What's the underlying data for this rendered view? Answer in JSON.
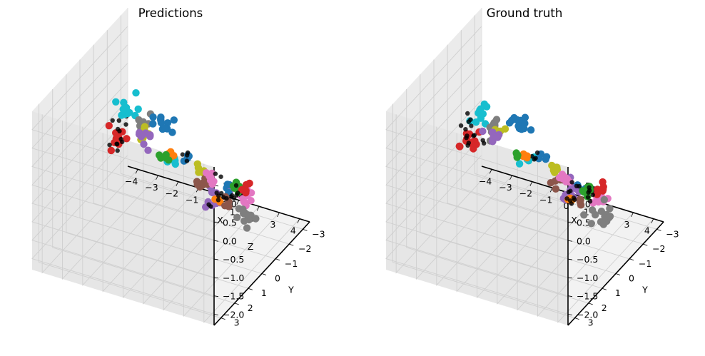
{
  "chart_data": [
    {
      "type": "scatter",
      "projection": "3d",
      "title": "Predictions",
      "xlabel": "X",
      "ylabel": "Y",
      "zlabel": "Z",
      "xlim": [
        -4.5,
        4.5
      ],
      "ylim": [
        -3.5,
        3.5
      ],
      "zlim": [
        -2.3,
        2.0
      ],
      "x_ticks": [
        "−4",
        "−3",
        "−2",
        "−1",
        "0",
        "1",
        "2",
        "3",
        "4"
      ],
      "y_ticks": [
        "−3",
        "−2",
        "−1",
        "0",
        "1",
        "2",
        "3"
      ],
      "z_ticks": [
        "1.5",
        "1.0",
        "0.5",
        "0.0",
        "−0.5",
        "−1.0",
        "−1.5",
        "−2.0"
      ],
      "grid": true,
      "clusters": [
        {
          "color": "#1f77b4",
          "n": 12,
          "x": 0.8,
          "y": 1.6,
          "z": 1.8,
          "sx": 0.5,
          "sy": 0.3,
          "sz": 0.08
        },
        {
          "color": "#1f77b4",
          "n": 4,
          "x": 0.5,
          "y": -0.5,
          "z": 0.0,
          "sx": 0.2,
          "sy": 0.2,
          "sz": 0.1
        },
        {
          "color": "#1f77b4",
          "n": 4,
          "x": 1.0,
          "y": -2.7,
          "z": -1.6,
          "sx": 0.2,
          "sy": 0.2,
          "sz": 0.1
        },
        {
          "color": "#17becf",
          "n": 12,
          "x": -2.0,
          "y": 0.3,
          "z": 1.1,
          "sx": 0.3,
          "sy": 0.4,
          "sz": 0.3
        },
        {
          "color": "#17becf",
          "n": 8,
          "x": -0.8,
          "y": -1.4,
          "z": -0.7,
          "sx": 0.3,
          "sy": 0.2,
          "sz": 0.08
        },
        {
          "color": "#9467bd",
          "n": 10,
          "x": -0.6,
          "y": 1.3,
          "z": 1.1,
          "sx": 0.4,
          "sy": 0.3,
          "sz": 0.1
        },
        {
          "color": "#9467bd",
          "n": 12,
          "x": 0.5,
          "y": -2.3,
          "z": -1.7,
          "sx": 0.4,
          "sy": 0.4,
          "sz": 0.25
        },
        {
          "color": "#bcbd22",
          "n": 9,
          "x": -1.0,
          "y": 0.5,
          "z": 0.8,
          "sx": 0.2,
          "sy": 0.2,
          "sz": 0.12
        },
        {
          "color": "#bcbd22",
          "n": 6,
          "x": 0.8,
          "y": -1.0,
          "z": -0.5,
          "sx": 0.2,
          "sy": 0.15,
          "sz": 0.1
        },
        {
          "color": "#7f7f7f",
          "n": 7,
          "x": -1.3,
          "y": 0.2,
          "z": 0.8,
          "sx": 0.2,
          "sy": 0.3,
          "sz": 0.15
        },
        {
          "color": "#7f7f7f",
          "n": 14,
          "x": 2.9,
          "y": -1.2,
          "z": -1.4,
          "sx": 0.5,
          "sy": 0.4,
          "sz": 0.2
        },
        {
          "color": "#2ca02c",
          "n": 6,
          "x": 0.3,
          "y": 1.0,
          "z": 0.6,
          "sx": 0.15,
          "sy": 0.15,
          "sz": 0.12
        },
        {
          "color": "#2ca02c",
          "n": 8,
          "x": 1.6,
          "y": -2.3,
          "z": -1.4,
          "sx": 0.2,
          "sy": 0.2,
          "sz": 0.12
        },
        {
          "color": "#ff7f0e",
          "n": 4,
          "x": 0.2,
          "y": 0.3,
          "z": 0.3,
          "sx": 0.1,
          "sy": 0.1,
          "sz": 0.06
        },
        {
          "color": "#ff7f0e",
          "n": 4,
          "x": 2.4,
          "y": 0.1,
          "z": -0.6,
          "sx": 0.12,
          "sy": 0.1,
          "sz": 0.06
        },
        {
          "color": "#d62728",
          "n": 12,
          "x": -3.0,
          "y": -0.5,
          "z": -0.1,
          "sx": 0.3,
          "sy": 0.3,
          "sz": 0.2
        },
        {
          "color": "#d62728",
          "n": 7,
          "x": 2.5,
          "y": -1.8,
          "z": -1.1,
          "sx": 0.2,
          "sy": 0.2,
          "sz": 0.12
        },
        {
          "color": "#8c564b",
          "n": 9,
          "x": 1.1,
          "y": -0.6,
          "z": -0.6,
          "sx": 0.3,
          "sy": 0.2,
          "sz": 0.12
        },
        {
          "color": "#8c564b",
          "n": 4,
          "x": 2.8,
          "y": 0.1,
          "z": -0.6,
          "sx": 0.12,
          "sy": 0.1,
          "sz": 0.12
        },
        {
          "color": "#e377c2",
          "n": 8,
          "x": 1.8,
          "y": -0.3,
          "z": -0.3,
          "sx": 0.25,
          "sy": 0.15,
          "sz": 0.12
        },
        {
          "color": "#e377c2",
          "n": 9,
          "x": 1.6,
          "y": -3.1,
          "z": -2.0,
          "sx": 0.35,
          "sy": 0.2,
          "sz": 0.15
        },
        {
          "color": "#000000",
          "n": 14,
          "x": -2.2,
          "y": 0.6,
          "z": 0.6,
          "sx": 0.3,
          "sy": 0.6,
          "sz": 0.5
        },
        {
          "color": "#000000",
          "n": 10,
          "x": 2.8,
          "y": 0.6,
          "z": -0.2,
          "sx": 0.3,
          "sy": 0.3,
          "sz": 0.4
        },
        {
          "color": "#000000",
          "n": 6,
          "x": 2.3,
          "y": -1.4,
          "z": -1.1,
          "sx": 0.3,
          "sy": 0.3,
          "sz": 0.15
        },
        {
          "color": "#000000",
          "n": 6,
          "x": 1.4,
          "y": -3.0,
          "z": -1.8,
          "sx": 0.3,
          "sy": 0.2,
          "sz": 0.12
        },
        {
          "color": "#000000",
          "n": 4,
          "x": 0.4,
          "y": -0.3,
          "z": 0.1,
          "sx": 0.15,
          "sy": 0.15,
          "sz": 0.12
        }
      ]
    },
    {
      "type": "scatter",
      "projection": "3d",
      "title": "Ground truth",
      "xlabel": "X",
      "ylabel": "Y",
      "zlabel": "",
      "xlim": [
        -4.5,
        4.5
      ],
      "ylim": [
        -3.5,
        3.5
      ],
      "zlim": [
        -2.3,
        2.0
      ],
      "x_ticks": [
        "−4",
        "−3",
        "−2",
        "−1",
        "0",
        "1",
        "2",
        "3",
        "4"
      ],
      "y_ticks": [
        "−3",
        "−2",
        "−1",
        "0",
        "1",
        "2",
        "3"
      ],
      "z_ticks": [
        "1.5",
        "1.0",
        "0.5",
        "0.0",
        "−0.5",
        "−1.0",
        "−1.5",
        "−2.0"
      ],
      "grid": true,
      "clusters": [
        {
          "color": "#1f77b4",
          "n": 12,
          "x": 0.8,
          "y": 1.6,
          "z": 1.8,
          "sx": 0.5,
          "sy": 0.3,
          "sz": 0.08
        },
        {
          "color": "#1f77b4",
          "n": 4,
          "x": 0.5,
          "y": -0.5,
          "z": 0.0,
          "sx": 0.2,
          "sy": 0.2,
          "sz": 0.1
        },
        {
          "color": "#1f77b4",
          "n": 4,
          "x": 1.0,
          "y": -2.6,
          "z": -1.6,
          "sx": 0.2,
          "sy": 0.2,
          "sz": 0.1
        },
        {
          "color": "#17becf",
          "n": 12,
          "x": -2.0,
          "y": 0.3,
          "z": 1.1,
          "sx": 0.3,
          "sy": 0.4,
          "sz": 0.3
        },
        {
          "color": "#17becf",
          "n": 6,
          "x": -0.8,
          "y": -1.4,
          "z": -0.7,
          "sx": 0.2,
          "sy": 0.2,
          "sz": 0.08
        },
        {
          "color": "#9467bd",
          "n": 8,
          "x": -0.6,
          "y": 1.3,
          "z": 1.1,
          "sx": 0.4,
          "sy": 0.3,
          "sz": 0.1
        },
        {
          "color": "#9467bd",
          "n": 12,
          "x": 0.5,
          "y": -2.3,
          "z": -1.7,
          "sx": 0.4,
          "sy": 0.4,
          "sz": 0.25
        },
        {
          "color": "#bcbd22",
          "n": 6,
          "x": -1.0,
          "y": 0.5,
          "z": 0.8,
          "sx": 0.2,
          "sy": 0.2,
          "sz": 0.12
        },
        {
          "color": "#bcbd22",
          "n": 6,
          "x": 0.8,
          "y": -1.0,
          "z": -0.5,
          "sx": 0.2,
          "sy": 0.15,
          "sz": 0.1
        },
        {
          "color": "#7f7f7f",
          "n": 9,
          "x": -1.3,
          "y": 0.2,
          "z": 0.8,
          "sx": 0.2,
          "sy": 0.3,
          "sz": 0.15
        },
        {
          "color": "#7f7f7f",
          "n": 14,
          "x": 2.9,
          "y": -1.2,
          "z": -1.4,
          "sx": 0.5,
          "sy": 0.4,
          "sz": 0.2
        },
        {
          "color": "#2ca02c",
          "n": 5,
          "x": 0.3,
          "y": 1.0,
          "z": 0.6,
          "sx": 0.15,
          "sy": 0.15,
          "sz": 0.12
        },
        {
          "color": "#2ca02c",
          "n": 9,
          "x": 1.6,
          "y": -2.3,
          "z": -1.4,
          "sx": 0.2,
          "sy": 0.2,
          "sz": 0.12
        },
        {
          "color": "#ff7f0e",
          "n": 5,
          "x": 0.2,
          "y": 0.3,
          "z": 0.3,
          "sx": 0.1,
          "sy": 0.1,
          "sz": 0.06
        },
        {
          "color": "#ff7f0e",
          "n": 4,
          "x": 2.4,
          "y": 0.1,
          "z": -0.6,
          "sx": 0.12,
          "sy": 0.1,
          "sz": 0.06
        },
        {
          "color": "#d62728",
          "n": 14,
          "x": -3.0,
          "y": -0.5,
          "z": -0.1,
          "sx": 0.3,
          "sy": 0.3,
          "sz": 0.25
        },
        {
          "color": "#d62728",
          "n": 7,
          "x": 2.5,
          "y": -1.8,
          "z": -1.1,
          "sx": 0.2,
          "sy": 0.2,
          "sz": 0.12
        },
        {
          "color": "#8c564b",
          "n": 7,
          "x": 1.2,
          "y": -0.6,
          "z": -0.6,
          "sx": 0.3,
          "sy": 0.2,
          "sz": 0.12
        },
        {
          "color": "#8c564b",
          "n": 4,
          "x": 2.8,
          "y": 0.1,
          "z": -0.6,
          "sx": 0.12,
          "sy": 0.1,
          "sz": 0.12
        },
        {
          "color": "#e377c2",
          "n": 9,
          "x": 1.8,
          "y": -0.3,
          "z": -0.3,
          "sx": 0.25,
          "sy": 0.15,
          "sz": 0.12
        },
        {
          "color": "#e377c2",
          "n": 9,
          "x": 1.6,
          "y": -3.1,
          "z": -2.0,
          "sx": 0.35,
          "sy": 0.2,
          "sz": 0.15
        },
        {
          "color": "#000000",
          "n": 14,
          "x": -2.2,
          "y": 0.6,
          "z": 0.6,
          "sx": 0.3,
          "sy": 0.6,
          "sz": 0.5
        },
        {
          "color": "#000000",
          "n": 10,
          "x": 2.8,
          "y": 0.6,
          "z": -0.2,
          "sx": 0.3,
          "sy": 0.3,
          "sz": 0.4
        },
        {
          "color": "#000000",
          "n": 6,
          "x": 2.3,
          "y": -1.4,
          "z": -1.1,
          "sx": 0.3,
          "sy": 0.3,
          "sz": 0.15
        },
        {
          "color": "#000000",
          "n": 6,
          "x": 1.4,
          "y": -3.0,
          "z": -1.8,
          "sx": 0.3,
          "sy": 0.2,
          "sz": 0.12
        },
        {
          "color": "#000000",
          "n": 4,
          "x": 0.4,
          "y": -0.3,
          "z": 0.1,
          "sx": 0.15,
          "sy": 0.15,
          "sz": 0.12
        }
      ]
    }
  ]
}
